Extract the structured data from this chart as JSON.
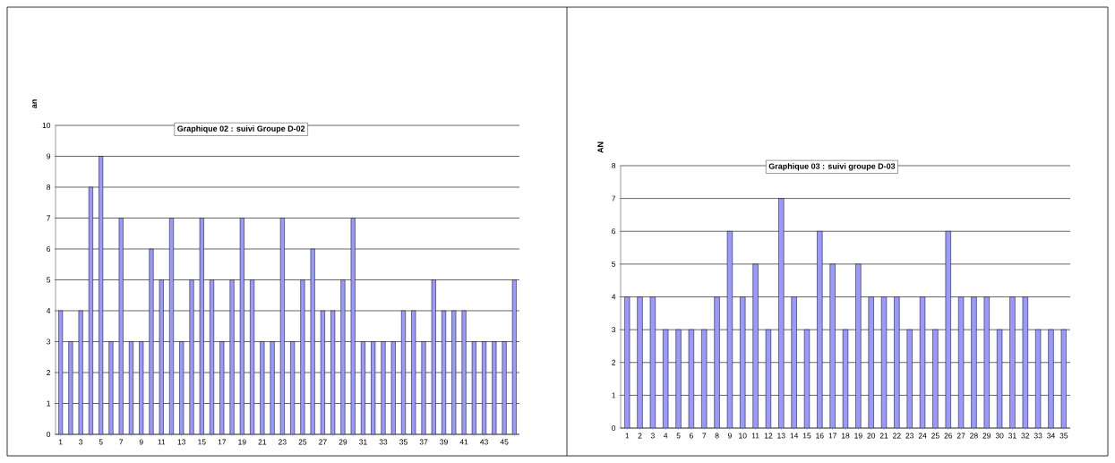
{
  "chart_data": [
    {
      "type": "bar",
      "title": "Graphique 02 : suivi Groupe D-02",
      "ylabel": "an",
      "categories": [
        "1",
        null,
        "3",
        null,
        "5",
        null,
        "7",
        null,
        "9",
        null,
        "11",
        null,
        "13",
        null,
        "15",
        null,
        "17",
        null,
        "19",
        null,
        "21",
        null,
        "23",
        null,
        "25",
        null,
        "27",
        null,
        "29",
        null,
        "31",
        null,
        "33",
        null,
        "35",
        null,
        "37",
        null,
        "39",
        null,
        "41",
        null,
        "43",
        null,
        "45",
        null
      ],
      "values": [
        4,
        3,
        4,
        8,
        9,
        3,
        7,
        3,
        3,
        6,
        5,
        7,
        3,
        5,
        7,
        5,
        3,
        5,
        7,
        5,
        3,
        3,
        7,
        3,
        5,
        6,
        4,
        4,
        5,
        7,
        3,
        3,
        3,
        3,
        4,
        4,
        3,
        5,
        4,
        4,
        4,
        3,
        3,
        3,
        3,
        5
      ],
      "color": "#9999ff",
      "ylim": [
        0,
        10
      ],
      "yticks": [
        0,
        1,
        2,
        3,
        4,
        5,
        6,
        7,
        8,
        9,
        10
      ],
      "grid": "y"
    },
    {
      "type": "bar",
      "title": "Graphique 03 : suivi groupe D-03",
      "ylabel": "AN",
      "categories": [
        "1",
        "2",
        "3",
        "4",
        "5",
        "6",
        "7",
        "8",
        "9",
        "10",
        "11",
        "12",
        "13",
        "14",
        "15",
        "16",
        "17",
        "18",
        "19",
        "20",
        "21",
        "22",
        "23",
        "24",
        "25",
        "26",
        "27",
        "28",
        "29",
        "30",
        "31",
        "32",
        "33",
        "34",
        "35"
      ],
      "values": [
        4,
        4,
        4,
        3,
        3,
        3,
        3,
        4,
        6,
        4,
        5,
        3,
        7,
        4,
        3,
        6,
        5,
        3,
        5,
        4,
        4,
        4,
        3,
        4,
        3,
        6,
        4,
        4,
        4,
        3,
        4,
        4,
        3,
        3,
        3
      ],
      "color": "#9999ff",
      "ylim": [
        0,
        8
      ],
      "yticks": [
        0,
        1,
        2,
        3,
        4,
        5,
        6,
        7,
        8
      ],
      "grid": "y"
    }
  ]
}
